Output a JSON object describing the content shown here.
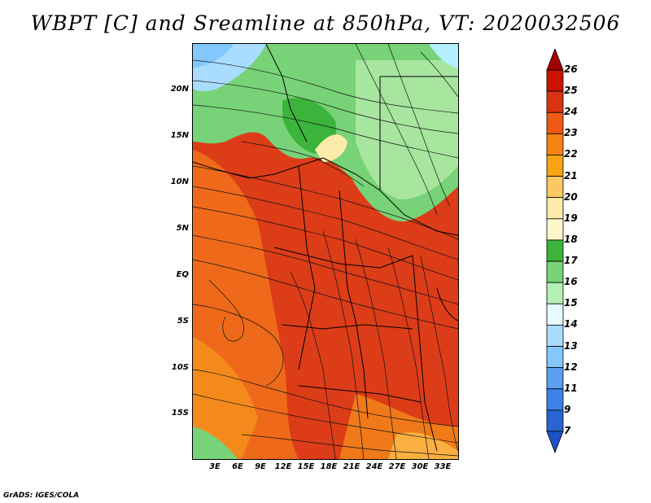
{
  "title": "WBPT [C] and Sreamline at 850hPa, VT: 2020032506",
  "credit": "GrADS: IGES/COLA",
  "map": {
    "lat_labels": [
      "20N",
      "15N",
      "10N",
      "5N",
      "EQ",
      "5S",
      "10S",
      "15S"
    ],
    "lon_labels": [
      "3E",
      "6E",
      "9E",
      "12E",
      "15E",
      "18E",
      "21E",
      "24E",
      "27E",
      "30E",
      "33E"
    ],
    "lon_range": [
      0,
      35
    ],
    "lat_range": [
      -20,
      24.5
    ]
  },
  "colorbar": {
    "labels": [
      "26",
      "25",
      "24",
      "23",
      "22",
      "21",
      "20",
      "19",
      "18",
      "17",
      "16",
      "15",
      "14",
      "13",
      "12",
      "11",
      "9",
      "7"
    ],
    "colors": [
      "#a50000",
      "#c81400",
      "#dc3214",
      "#ee5a14",
      "#f68214",
      "#f9a414",
      "#fcc864",
      "#fcebaa",
      "#fcf6c8",
      "#3cb43c",
      "#78d278",
      "#b4f0b4",
      "#e6faff",
      "#aadcff",
      "#82c8ff",
      "#5aa0f0",
      "#3c82e6",
      "#2864d2",
      "#1e50c8"
    ]
  }
}
